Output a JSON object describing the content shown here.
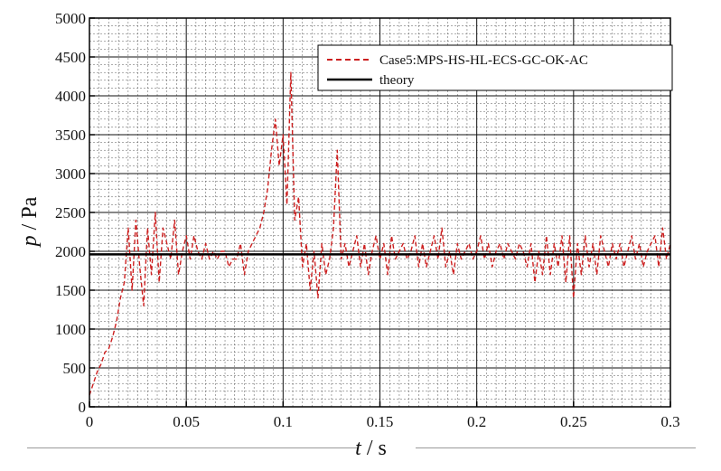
{
  "chart_data": {
    "type": "line",
    "title": "",
    "xlabel": {
      "italic": "t",
      "rest": " / s"
    },
    "ylabel": {
      "italic": "p",
      "rest": " / Pa"
    },
    "xlim": [
      0,
      0.3
    ],
    "ylim": [
      0,
      5000
    ],
    "x_ticks": [
      "0",
      "0.05",
      "0.1",
      "0.15",
      "0.2",
      "0.25",
      "0.3"
    ],
    "x_tick_values": [
      0,
      0.05,
      0.1,
      0.15,
      0.2,
      0.25,
      0.3
    ],
    "y_ticks": [
      "0",
      "500",
      "1000",
      "1500",
      "2000",
      "2500",
      "3000",
      "3500",
      "4000",
      "4500",
      "5000"
    ],
    "y_tick_values": [
      0,
      500,
      1000,
      1500,
      2000,
      2500,
      3000,
      3500,
      4000,
      4500,
      5000
    ],
    "grid": true,
    "legend_position": "top-right",
    "series": [
      {
        "name": "Case5:MPS-HS-HL-ECS-GC-OK-AC",
        "style": "dashed",
        "color": "#cc1f1f",
        "x": [
          0,
          0.002,
          0.004,
          0.006,
          0.008,
          0.01,
          0.012,
          0.014,
          0.016,
          0.018,
          0.02,
          0.022,
          0.024,
          0.026,
          0.028,
          0.03,
          0.032,
          0.034,
          0.036,
          0.038,
          0.04,
          0.042,
          0.044,
          0.046,
          0.048,
          0.05,
          0.052,
          0.054,
          0.056,
          0.058,
          0.06,
          0.062,
          0.064,
          0.066,
          0.068,
          0.07,
          0.072,
          0.074,
          0.076,
          0.078,
          0.08,
          0.082,
          0.084,
          0.086,
          0.088,
          0.09,
          0.092,
          0.094,
          0.096,
          0.098,
          0.1,
          0.102,
          0.104,
          0.106,
          0.108,
          0.11,
          0.112,
          0.114,
          0.116,
          0.118,
          0.12,
          0.122,
          0.124,
          0.126,
          0.128,
          0.13,
          0.132,
          0.134,
          0.136,
          0.138,
          0.14,
          0.142,
          0.144,
          0.146,
          0.148,
          0.15,
          0.152,
          0.154,
          0.156,
          0.158,
          0.16,
          0.162,
          0.164,
          0.166,
          0.168,
          0.17,
          0.172,
          0.174,
          0.176,
          0.178,
          0.18,
          0.182,
          0.184,
          0.186,
          0.188,
          0.19,
          0.192,
          0.194,
          0.196,
          0.198,
          0.2,
          0.202,
          0.204,
          0.206,
          0.208,
          0.21,
          0.212,
          0.214,
          0.216,
          0.218,
          0.22,
          0.222,
          0.224,
          0.226,
          0.228,
          0.23,
          0.232,
          0.234,
          0.236,
          0.238,
          0.24,
          0.242,
          0.244,
          0.246,
          0.248,
          0.25,
          0.252,
          0.254,
          0.256,
          0.258,
          0.26,
          0.262,
          0.264,
          0.266,
          0.268,
          0.27,
          0.272,
          0.274,
          0.276,
          0.278,
          0.28,
          0.282,
          0.284,
          0.286,
          0.288,
          0.29,
          0.292,
          0.294,
          0.296,
          0.298,
          0.3
        ],
        "y": [
          150,
          300,
          450,
          550,
          700,
          750,
          900,
          1100,
          1400,
          1600,
          2300,
          1500,
          2400,
          1800,
          1300,
          2300,
          1700,
          2500,
          1600,
          2300,
          2100,
          1900,
          2400,
          1700,
          2000,
          2200,
          1900,
          2200,
          2000,
          1900,
          2100,
          1900,
          2000,
          1900,
          2000,
          2000,
          1800,
          1900,
          1900,
          2100,
          1700,
          2000,
          2100,
          2200,
          2300,
          2500,
          2800,
          3300,
          3700,
          3100,
          3500,
          2600,
          4300,
          2400,
          2700,
          1800,
          2100,
          1500,
          2000,
          1400,
          2100,
          1700,
          1900,
          2300,
          3300,
          1900,
          2100,
          1800,
          2000,
          2200,
          1800,
          2100,
          1700,
          2000,
          2200,
          1900,
          2100,
          1700,
          2200,
          1900,
          2000,
          2100,
          1900,
          2000,
          2200,
          1800,
          2100,
          1800,
          2000,
          2200,
          1900,
          2300,
          1800,
          2000,
          1700,
          2100,
          1900,
          2000,
          2100,
          1900,
          2000,
          2200,
          1900,
          2100,
          1800,
          2000,
          2100,
          1900,
          2100,
          2000,
          1900,
          2100,
          2000,
          1800,
          2100,
          1600,
          2000,
          1700,
          2200,
          1700,
          2100,
          1800,
          2200,
          1600,
          2200,
          1400,
          2100,
          1700,
          2200,
          1800,
          2100,
          1700,
          2200,
          2000,
          1800,
          2100,
          1900,
          2100,
          1800,
          2000,
          2200,
          1900,
          2100,
          1800,
          2000,
          2100,
          2200,
          1800,
          2300,
          1900,
          2100
        ]
      },
      {
        "name": "theory",
        "style": "solid",
        "color": "#000000",
        "x": [
          0,
          0.3
        ],
        "y": [
          1960,
          1960
        ]
      }
    ]
  }
}
